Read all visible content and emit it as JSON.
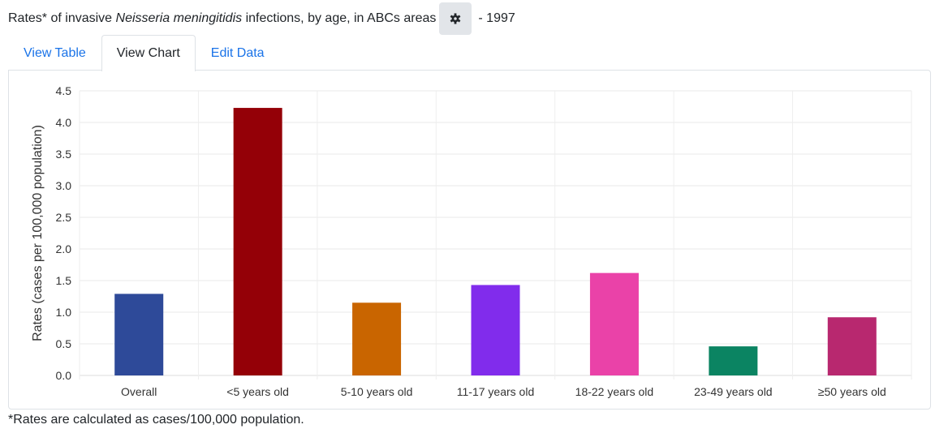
{
  "header": {
    "title_pre": "Rates* of invasive ",
    "title_italic": "Neisseria meningitidis",
    "title_post": " infections, by age, in ABCs areas",
    "year": "- 1997",
    "gear_icon": "gear-icon"
  },
  "tabs": [
    {
      "label": "View Table"
    },
    {
      "label": "View Chart"
    },
    {
      "label": "Edit Data"
    }
  ],
  "footnote": "*Rates are calculated as cases/100,000 population.",
  "chart_data": {
    "type": "bar",
    "title": "",
    "xlabel": "",
    "ylabel": "Rates (cases per 100,000 population)",
    "ylim": [
      0,
      4.5
    ],
    "yticks": [
      "0.0",
      "0.5",
      "1.0",
      "1.5",
      "2.0",
      "2.5",
      "3.0",
      "3.5",
      "4.0",
      "4.5"
    ],
    "categories": [
      "Overall",
      "<5 years old",
      "5-10 years old",
      "11-17 years old",
      "18-22 years old",
      "23-49 years old",
      "≥50 years old"
    ],
    "values": [
      1.29,
      4.23,
      1.15,
      1.43,
      1.62,
      0.46,
      0.92
    ],
    "colors": [
      "#2e4a99",
      "#940007",
      "#c96500",
      "#812cec",
      "#ea42a8",
      "#0b8462",
      "#b8286f"
    ],
    "grid": true
  }
}
